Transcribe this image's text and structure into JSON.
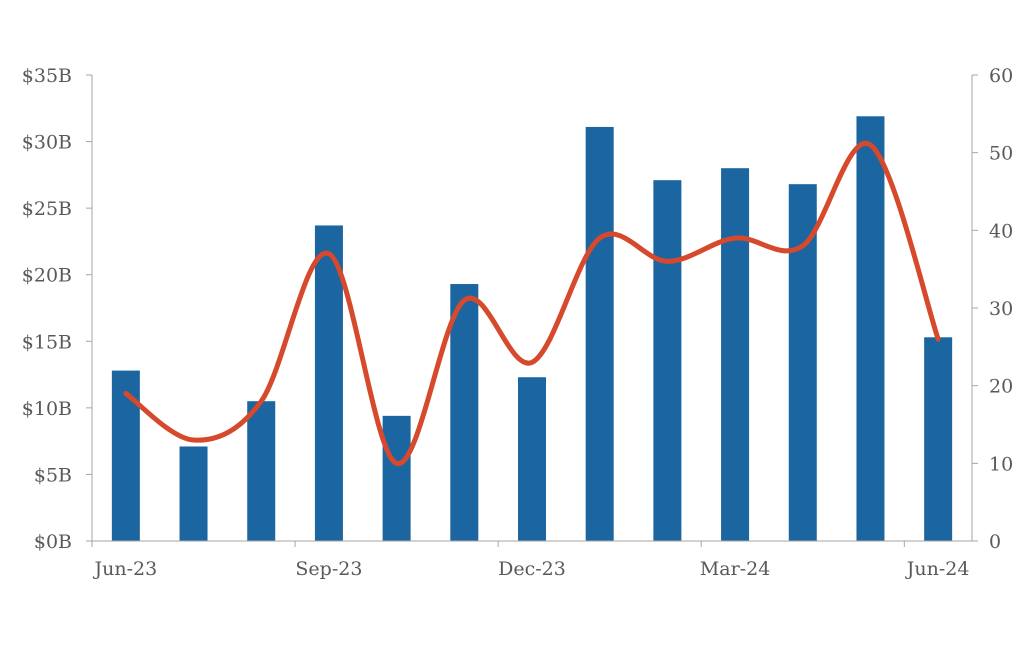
{
  "chart_data": {
    "type": "bar",
    "x_tick_labels": [
      "Jun-23",
      "Sep-23",
      "Dec-23",
      "Mar-24",
      "Jun-24"
    ],
    "y_left": {
      "ticks": [
        0,
        5,
        10,
        15,
        20,
        25,
        30,
        35
      ],
      "tick_labels": [
        "$0B",
        "$5B",
        "$10B",
        "$15B",
        "$20B",
        "$25B",
        "$30B",
        "$35B"
      ],
      "range": [
        0,
        35
      ]
    },
    "y_right": {
      "ticks": [
        0,
        10,
        20,
        30,
        40,
        50,
        60
      ],
      "tick_labels": [
        "0",
        "10",
        "20",
        "30",
        "40",
        "50",
        "60"
      ],
      "range": [
        0,
        60
      ]
    },
    "categories": [
      "Jun-23",
      "Jul-23",
      "Aug-23",
      "Sep-23",
      "Oct-23",
      "Nov-23",
      "Dec-23",
      "Jan-24",
      "Feb-24",
      "Mar-24",
      "Apr-24",
      "May-24",
      "Jun-24"
    ],
    "series": [
      {
        "type": "bar",
        "axis": "left",
        "values": [
          12.8,
          7.1,
          10.5,
          23.7,
          9.4,
          19.3,
          12.3,
          31.1,
          27.1,
          28.0,
          26.8,
          31.9,
          15.3
        ]
      },
      {
        "type": "line",
        "axis": "right",
        "smooth": true,
        "values": [
          19,
          13,
          18,
          37,
          10,
          31,
          23,
          39,
          36,
          39,
          38,
          51,
          26
        ]
      }
    ],
    "grid": false,
    "legend": "none",
    "colors": {
      "bars": "#1b65a0",
      "line": "#d6492c",
      "axis": "#a6a6a6",
      "tick_text": "#595959"
    }
  }
}
